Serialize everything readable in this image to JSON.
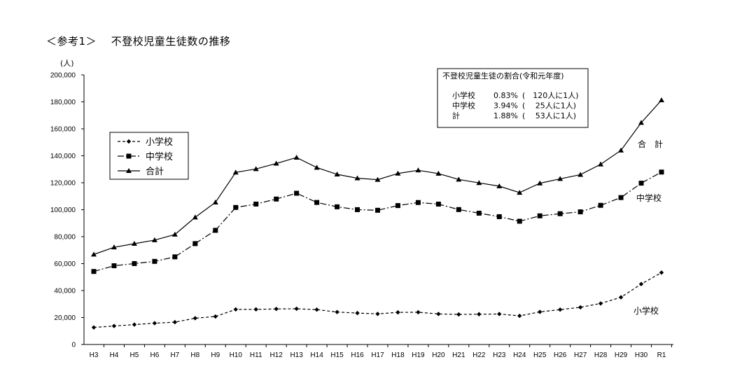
{
  "page": {
    "title": "＜参考1＞　 不登校児童生徒数の推移"
  },
  "ratio_box": {
    "title": "不登校児童生徒の割合(令和元年度)",
    "rows": [
      {
        "label": "小学校",
        "percent": "0.83%",
        "ratio": "(　120人に1人)"
      },
      {
        "label": "中学校",
        "percent": "3.94%",
        "ratio": "(　 25人に1人)"
      },
      {
        "label": "計",
        "percent": "1.88%",
        "ratio": "(　 53人に1人)"
      }
    ]
  },
  "legend": {
    "items": [
      {
        "label": "小学校",
        "marker": "diamond",
        "dash": "dashed"
      },
      {
        "label": "中学校",
        "marker": "square",
        "dash": "dashdot"
      },
      {
        "label": "合計",
        "marker": "triangle",
        "dash": "solid"
      }
    ]
  },
  "end_labels": {
    "total": "合　計",
    "junior_high": "中学校",
    "elementary": "小学校"
  },
  "chart_data": {
    "type": "line",
    "ylabel": "(人)",
    "ylim": [
      0,
      200000
    ],
    "yticks": [
      "0",
      "20,000",
      "40,000",
      "60,000",
      "80,000",
      "100,000",
      "120,000",
      "140,000",
      "160,000",
      "180,000",
      "200,000"
    ],
    "ytick_values": [
      0,
      20000,
      40000,
      60000,
      80000,
      100000,
      120000,
      140000,
      160000,
      180000,
      200000
    ],
    "categories": [
      "H3",
      "H4",
      "H5",
      "H6",
      "H7",
      "H8",
      "H9",
      "H10",
      "H11",
      "H12",
      "H13",
      "H14",
      "H15",
      "H16",
      "H17",
      "H18",
      "H19",
      "H20",
      "H21",
      "H22",
      "H23",
      "H24",
      "H25",
      "H26",
      "H27",
      "H28",
      "H29",
      "H30",
      "R1"
    ],
    "series": [
      {
        "name": "小学校",
        "marker": "diamond",
        "dash": "dashed",
        "values": [
          12645,
          13710,
          14769,
          15786,
          16569,
          19498,
          20765,
          26017,
          26047,
          26373,
          26511,
          25869,
          24077,
          23318,
          22709,
          23825,
          23927,
          22652,
          22327,
          22463,
          22622,
          21243,
          24175,
          25864,
          27583,
          30448,
          35032,
          44841,
          53350
        ]
      },
      {
        "name": "中学校",
        "marker": "square",
        "dash": "dashdot",
        "values": [
          54172,
          58421,
          60039,
          61663,
          65022,
          74853,
          84701,
          101675,
          104180,
          107913,
          112211,
          105383,
          102149,
          100040,
          99578,
          103069,
          105328,
          104153,
          100105,
          97428,
          94836,
          91446,
          95442,
          97033,
          98408,
          103235,
          108999,
          119687,
          127922
        ]
      },
      {
        "name": "合計",
        "marker": "triangle",
        "dash": "solid",
        "values": [
          66817,
          72131,
          74808,
          77449,
          81591,
          94351,
          105466,
          127692,
          130227,
          134286,
          138722,
          131252,
          126226,
          123358,
          122287,
          126894,
          129255,
          126805,
          122432,
          119891,
          117458,
          112689,
          119617,
          122897,
          125991,
          133683,
          144031,
          164528,
          181272
        ]
      }
    ],
    "grid": false,
    "legend_position": "left"
  }
}
